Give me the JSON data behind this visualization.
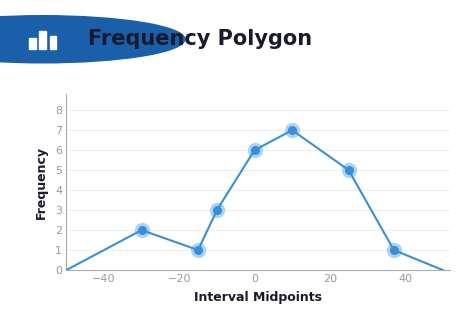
{
  "polygon_x": [
    -50,
    -30,
    -15,
    -10,
    0,
    10,
    25,
    37,
    50
  ],
  "polygon_y": [
    0,
    2,
    1,
    3,
    6,
    7,
    5,
    1,
    0
  ],
  "xlim": [
    -50,
    52
  ],
  "ylim": [
    0,
    8.8
  ],
  "xticks": [
    -40,
    -20,
    0,
    20,
    40
  ],
  "yticks": [
    0,
    1,
    2,
    3,
    4,
    5,
    6,
    7,
    8
  ],
  "xlabel": "Interval Midpoints",
  "ylabel": "Frequency",
  "line_color": "#3a8fd4",
  "marker_color": "#3a8fd4",
  "marker_glow_color": "#aad4f5",
  "background_color": "#ffffff",
  "title": "Frequency Polygon",
  "title_fontsize": 15,
  "axis_color": "#aaaaaa",
  "tick_color": "#999999",
  "icon_circle_color": "#1a5faa",
  "icon_bar_color": "#ffffff",
  "title_text_color": "#1a1a2e"
}
